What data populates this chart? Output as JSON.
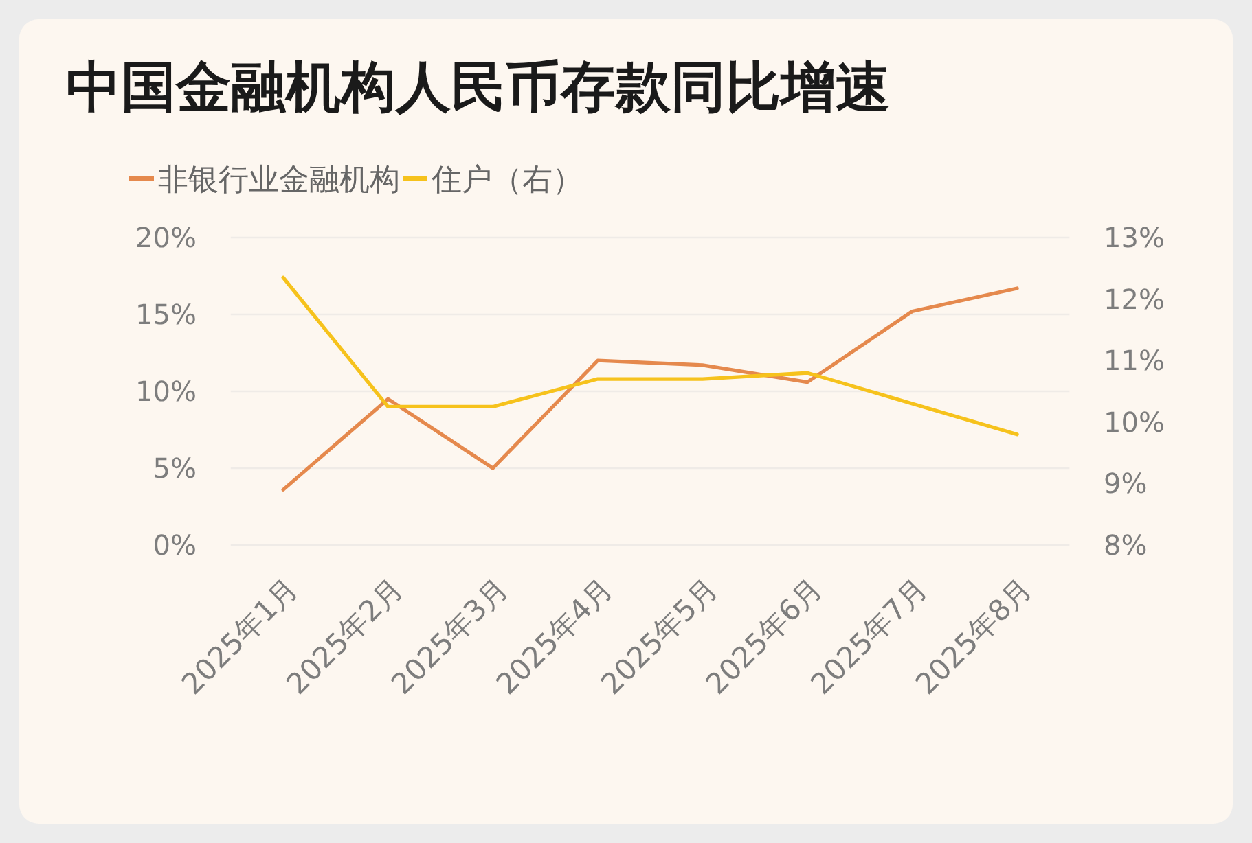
{
  "chart_data": {
    "type": "line",
    "title": "中国金融机构人民币存款同比增速",
    "categories": [
      "2025年1月",
      "2025年2月",
      "2025年3月",
      "2025年4月",
      "2025年5月",
      "2025年6月",
      "2025年7月",
      "2025年8月"
    ],
    "series": [
      {
        "name": "非银行业金融机构",
        "color": "#e5894d",
        "values": [
          3.6,
          9.5,
          5.0,
          12.0,
          11.7,
          10.6,
          15.2,
          16.7
        ]
      },
      {
        "name": "住户（右）",
        "color": "#f6c21c",
        "axis": "y2",
        "values": [
          12.35,
          10.25,
          10.25,
          10.7,
          10.7,
          10.8,
          10.3,
          9.8
        ]
      }
    ],
    "ylim": [
      0,
      20
    ],
    "yticks": [
      {
        "value": 0,
        "label": "0%"
      },
      {
        "value": 5,
        "label": "5%"
      },
      {
        "value": 10,
        "label": "10%"
      },
      {
        "value": 15,
        "label": "15%"
      },
      {
        "value": 20,
        "label": "20%"
      }
    ],
    "y2lim": [
      8,
      13
    ],
    "y2ticks": [
      {
        "value": 8,
        "label": "8%"
      },
      {
        "value": 9,
        "label": "9%"
      },
      {
        "value": 10,
        "label": "10%"
      },
      {
        "value": 11,
        "label": "11%"
      },
      {
        "value": 12,
        "label": "12%"
      },
      {
        "value": 13,
        "label": "13%"
      }
    ],
    "grid": "y",
    "legend": "top left",
    "line_style": "solid",
    "marker": "none"
  }
}
